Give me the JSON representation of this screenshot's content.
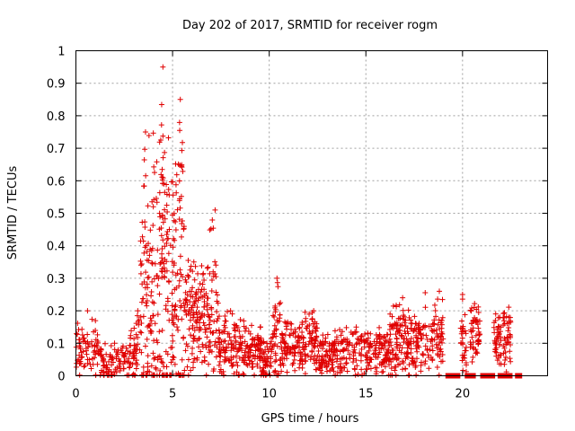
{
  "chart_data": {
    "type": "scatter",
    "title": "Day 202 of 2017, SRMTID for receiver rogm",
    "xlabel": "GPS time / hours",
    "ylabel": "SRMTID / TECUs",
    "xlim": [
      0,
      24.4
    ],
    "ylim": [
      0,
      1
    ],
    "x_ticks": [
      0,
      5,
      10,
      15,
      20
    ],
    "x_tick_labels": [
      "0",
      "5",
      "10",
      "15",
      "20"
    ],
    "y_ticks": [
      0,
      0.1,
      0.2,
      0.3,
      0.4,
      0.5,
      0.6,
      0.7,
      0.8,
      0.9,
      1
    ],
    "y_tick_labels": [
      "0",
      "0.1",
      "0.2",
      "0.3",
      "0.4",
      "0.5",
      "0.6",
      "0.7",
      "0.8",
      "0.9",
      "1"
    ],
    "grid": true,
    "marker": "plus",
    "color": "#e00000",
    "series": [
      {
        "name": "SRMTID",
        "segments": [
          {
            "x_start": 0.0,
            "x_end": 1.3,
            "base": 0.07,
            "spread": 0.06,
            "count": 80,
            "peak_at": 0.6,
            "peak": 0.2
          },
          {
            "x_start": 1.3,
            "x_end": 2.8,
            "base": 0.04,
            "spread": 0.04,
            "count": 90,
            "peak_at": 2.0,
            "peak": 0.1
          },
          {
            "x_start": 2.8,
            "x_end": 3.3,
            "base": 0.07,
            "spread": 0.06,
            "count": 40,
            "peak_at": 3.2,
            "peak": 0.2
          },
          {
            "x_start": 3.3,
            "x_end": 4.0,
            "base": 0.22,
            "spread": 0.25,
            "count": 90,
            "peak_at": 3.6,
            "peak": 0.75
          },
          {
            "x_start": 4.0,
            "x_end": 4.8,
            "base": 0.3,
            "spread": 0.35,
            "count": 120,
            "peak_at": 4.5,
            "peak": 0.95
          },
          {
            "x_start": 4.8,
            "x_end": 5.6,
            "base": 0.25,
            "spread": 0.3,
            "count": 110,
            "peak_at": 5.4,
            "peak": 0.85
          },
          {
            "x_start": 5.6,
            "x_end": 6.6,
            "base": 0.18,
            "spread": 0.12,
            "count": 110,
            "peak_at": 6.1,
            "peak": 0.35
          },
          {
            "x_start": 6.6,
            "x_end": 7.4,
            "base": 0.16,
            "spread": 0.12,
            "count": 80,
            "peak_at": 7.2,
            "peak": 0.51
          },
          {
            "x_start": 7.4,
            "x_end": 10.2,
            "base": 0.07,
            "spread": 0.06,
            "count": 240,
            "peak_at": 8.0,
            "peak": 0.2
          },
          {
            "x_start": 10.2,
            "x_end": 10.6,
            "base": 0.12,
            "spread": 0.1,
            "count": 40,
            "peak_at": 10.4,
            "peak": 0.3
          },
          {
            "x_start": 10.6,
            "x_end": 12.5,
            "base": 0.09,
            "spread": 0.06,
            "count": 170,
            "peak_at": 12.3,
            "peak": 0.2
          },
          {
            "x_start": 12.5,
            "x_end": 16.2,
            "base": 0.07,
            "spread": 0.05,
            "count": 280,
            "peak_at": 14.5,
            "peak": 0.15
          },
          {
            "x_start": 16.2,
            "x_end": 17.1,
            "base": 0.1,
            "spread": 0.08,
            "count": 90,
            "peak_at": 16.9,
            "peak": 0.24
          },
          {
            "x_start": 17.1,
            "x_end": 19.0,
            "base": 0.1,
            "spread": 0.07,
            "count": 160,
            "peak_at": 18.8,
            "peak": 0.26
          },
          {
            "x_start": 19.9,
            "x_end": 20.2,
            "base": 0.1,
            "spread": 0.08,
            "count": 30,
            "peak_at": 20.0,
            "peak": 0.25
          },
          {
            "x_start": 20.4,
            "x_end": 20.9,
            "base": 0.13,
            "spread": 0.07,
            "count": 50,
            "peak_at": 20.6,
            "peak": 0.21
          },
          {
            "x_start": 21.6,
            "x_end": 22.0,
            "base": 0.1,
            "spread": 0.06,
            "count": 40,
            "peak_at": 21.7,
            "peak": 0.17
          },
          {
            "x_start": 22.1,
            "x_end": 22.5,
            "base": 0.1,
            "spread": 0.08,
            "count": 40,
            "peak_at": 22.4,
            "peak": 0.18
          }
        ],
        "zero_values_x": [
          19.3,
          19.5,
          19.7,
          20.3,
          20.5,
          21.1,
          21.3,
          21.5,
          22.0,
          22.2,
          22.4,
          22.9
        ]
      }
    ]
  }
}
